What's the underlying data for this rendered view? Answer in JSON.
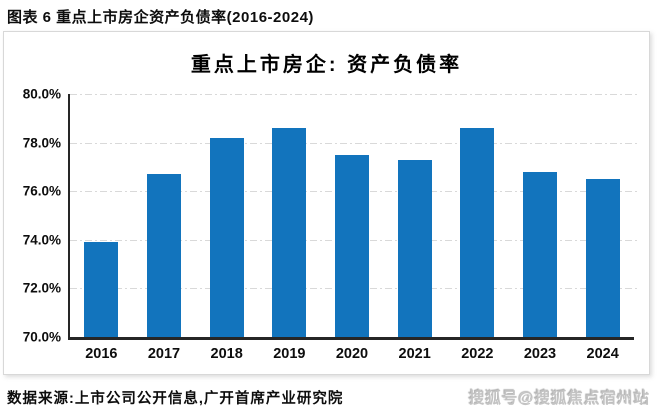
{
  "page": {
    "header_title": "图表 6 重点上市房企资产负债率(2016-2024)",
    "source_note": "数据来源:上市公司公开信息,广开首席产业研究院",
    "watermark": "搜狐号@搜狐焦点宿州站"
  },
  "chart_data": {
    "type": "bar",
    "title": "重点上市房企: 资产负债率",
    "categories": [
      "2016",
      "2017",
      "2018",
      "2019",
      "2020",
      "2021",
      "2022",
      "2023",
      "2024"
    ],
    "values": [
      73.9,
      76.7,
      78.2,
      78.6,
      77.5,
      77.3,
      78.6,
      76.8,
      76.5
    ],
    "xlabel": "",
    "ylabel": "",
    "ylim": [
      70,
      80
    ],
    "ytick_step": 2,
    "ytick_labels": [
      "80.0%",
      "78.0%",
      "76.0%",
      "74.0%",
      "72.0%",
      "70.0%"
    ],
    "bar_color": "#1274BD",
    "grid": true,
    "gridline_style": "dash-dot",
    "legend": "none"
  }
}
